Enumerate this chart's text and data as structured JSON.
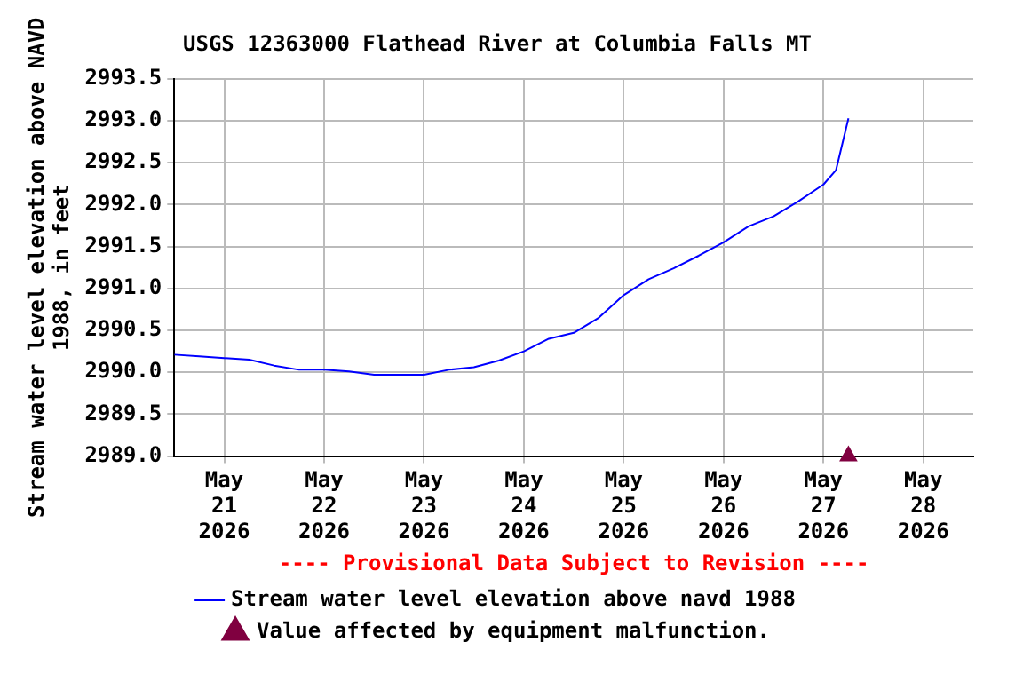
{
  "chart_data": {
    "type": "line",
    "title": "USGS 12363000 Flathead River at Columbia Falls MT",
    "ylabel": "Stream water level elevation above NAVD 1988, in feet",
    "xlim": [
      "2026-05-20T12:00",
      "2026-05-28T12:00"
    ],
    "xticks": [
      {
        "value": "2026-05-21",
        "label": "May\n21\n2026"
      },
      {
        "value": "2026-05-22",
        "label": "May\n22\n2026"
      },
      {
        "value": "2026-05-23",
        "label": "May\n23\n2026"
      },
      {
        "value": "2026-05-24",
        "label": "May\n24\n2026"
      },
      {
        "value": "2026-05-25",
        "label": "May\n25\n2026"
      },
      {
        "value": "2026-05-26",
        "label": "May\n26\n2026"
      },
      {
        "value": "2026-05-27",
        "label": "May\n27\n2026"
      },
      {
        "value": "2026-05-28",
        "label": "May\n28\n2026"
      }
    ],
    "ylim": [
      2989.0,
      2993.5
    ],
    "yticks": [
      {
        "value": 2989,
        "label": "2989.0"
      },
      {
        "value": 2989.5,
        "label": "2989.5"
      },
      {
        "value": 2990,
        "label": "2990.0"
      },
      {
        "value": 2990.5,
        "label": "2990.5"
      },
      {
        "value": 2991,
        "label": "2991.0"
      },
      {
        "value": 2991.5,
        "label": "2991.5"
      },
      {
        "value": 2992,
        "label": "2992.0"
      },
      {
        "value": 2992.5,
        "label": "2992.5"
      },
      {
        "value": 2993,
        "label": "2993.0"
      },
      {
        "value": 2993.5,
        "label": "2993.5"
      }
    ],
    "grid": true,
    "legend": "bottom",
    "annotations": [
      "---- Provisional Data Subject to Revision ----"
    ],
    "series": [
      {
        "name": "Stream water level elevation above navd 1988",
        "type": "line",
        "color": "#0000ff",
        "marker": "none",
        "line_style": "solid",
        "x": [
          "2026-05-20T12:00",
          "2026-05-20T18:00",
          "2026-05-21T00:00",
          "2026-05-21T06:00",
          "2026-05-21T12:00",
          "2026-05-21T18:00",
          "2026-05-22T00:00",
          "2026-05-22T06:00",
          "2026-05-22T12:00",
          "2026-05-22T18:00",
          "2026-05-23T00:00",
          "2026-05-23T06:00",
          "2026-05-23T12:00",
          "2026-05-23T18:00",
          "2026-05-24T00:00",
          "2026-05-24T06:00",
          "2026-05-24T12:00",
          "2026-05-24T18:00",
          "2026-05-25T00:00",
          "2026-05-25T06:00",
          "2026-05-25T12:00",
          "2026-05-25T18:00",
          "2026-05-26T00:00",
          "2026-05-26T06:00",
          "2026-05-26T12:00",
          "2026-05-26T18:00",
          "2026-05-27T00:00",
          "2026-05-27T03:00",
          "2026-05-27T06:00"
        ],
        "values": [
          2990.21,
          2990.19,
          2990.17,
          2990.15,
          2990.08,
          2990.03,
          2990.03,
          2990.01,
          2989.97,
          2989.97,
          2989.97,
          2990.03,
          2990.06,
          2990.14,
          2990.25,
          2990.4,
          2990.47,
          2990.65,
          2990.92,
          2991.11,
          2991.24,
          2991.39,
          2991.55,
          2991.74,
          2991.86,
          2992.04,
          2992.24,
          2992.41,
          2993.03
        ]
      },
      {
        "name": "Value affected by equipment malfunction.",
        "type": "scatter",
        "color": "#800040",
        "marker": "triangle",
        "x": [
          "2026-05-27T06:00"
        ],
        "values": [
          2989.0
        ]
      }
    ]
  }
}
